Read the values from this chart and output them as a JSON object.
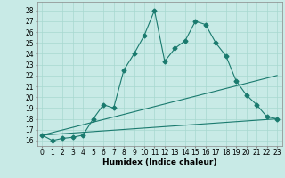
{
  "xlabel": "Humidex (Indice chaleur)",
  "bg_color": "#c8eae6",
  "line_color": "#1a7a6e",
  "grid_color": "#a8d8d0",
  "x_values": [
    0,
    1,
    2,
    3,
    4,
    5,
    6,
    7,
    8,
    9,
    10,
    11,
    12,
    13,
    14,
    15,
    16,
    17,
    18,
    19,
    20,
    21,
    22,
    23
  ],
  "series1": [
    16.5,
    16.0,
    16.2,
    16.3,
    16.5,
    18.0,
    19.3,
    19.0,
    22.5,
    24.0,
    25.7,
    28.0,
    23.3,
    24.5,
    25.2,
    27.0,
    26.7,
    25.0,
    23.8,
    21.5,
    20.2,
    19.3,
    18.2,
    18.0
  ],
  "series2_x": [
    0,
    23
  ],
  "series2_y": [
    16.5,
    18.0
  ],
  "series3_x": [
    0,
    23
  ],
  "series3_y": [
    16.5,
    22.0
  ],
  "xlim": [
    -0.5,
    23.5
  ],
  "ylim": [
    15.5,
    28.8
  ],
  "yticks": [
    16,
    17,
    18,
    19,
    20,
    21,
    22,
    23,
    24,
    25,
    26,
    27,
    28
  ],
  "xticks": [
    0,
    1,
    2,
    3,
    4,
    5,
    6,
    7,
    8,
    9,
    10,
    11,
    12,
    13,
    14,
    15,
    16,
    17,
    18,
    19,
    20,
    21,
    22,
    23
  ],
  "xlabel_fontsize": 6.5,
  "tick_fontsize": 5.5
}
